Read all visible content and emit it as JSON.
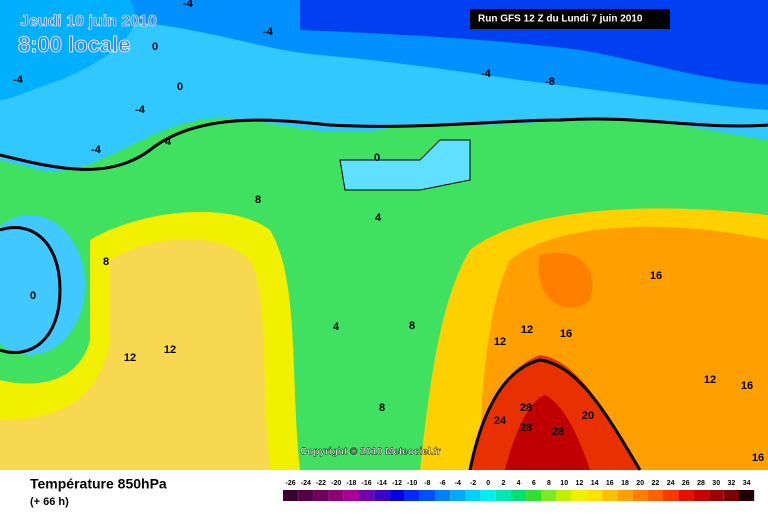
{
  "header": {
    "title": "Jeudi 10 juin 2010",
    "subtitle": "8:00 locale",
    "run": "Run GFS 12 Z du Lundi 7 juin 2010"
  },
  "copyright": "Copyright © 2010 Meteociel.fr",
  "legend": {
    "title": "Température 850hPa",
    "lead": "(+ 66 h)",
    "scale": [
      -26,
      -24,
      -22,
      -20,
      -18,
      -16,
      -14,
      -12,
      -10,
      -8,
      -6,
      -4,
      -2,
      0,
      2,
      4,
      6,
      8,
      10,
      12,
      14,
      16,
      18,
      20,
      22,
      24,
      26,
      28,
      30,
      32,
      34
    ],
    "colors": [
      "#3a0030",
      "#550045",
      "#70005a",
      "#8c0078",
      "#a80096",
      "#7000b0",
      "#3c00c8",
      "#0000e0",
      "#0028ff",
      "#0050ff",
      "#0080ff",
      "#00a8ff",
      "#00d0ff",
      "#00f0f0",
      "#00e8b0",
      "#00e070",
      "#30e030",
      "#80e820",
      "#c0f000",
      "#f0f000",
      "#ffe000",
      "#ffc000",
      "#ffa000",
      "#ff8000",
      "#ff6000",
      "#ff3800",
      "#e81000",
      "#c80000",
      "#a00000",
      "#780000",
      "#200000"
    ]
  },
  "contour_labels": [
    "-4",
    "-4",
    "-4",
    "-4",
    "-4",
    "-4",
    "-8",
    "0",
    "0",
    "0",
    "0",
    "4",
    "4",
    "4",
    "8",
    "8",
    "8",
    "8",
    "12",
    "12",
    "12",
    "12",
    "12",
    "16",
    "16",
    "16",
    "16",
    "20",
    "24",
    "28",
    "28",
    "28"
  ]
}
